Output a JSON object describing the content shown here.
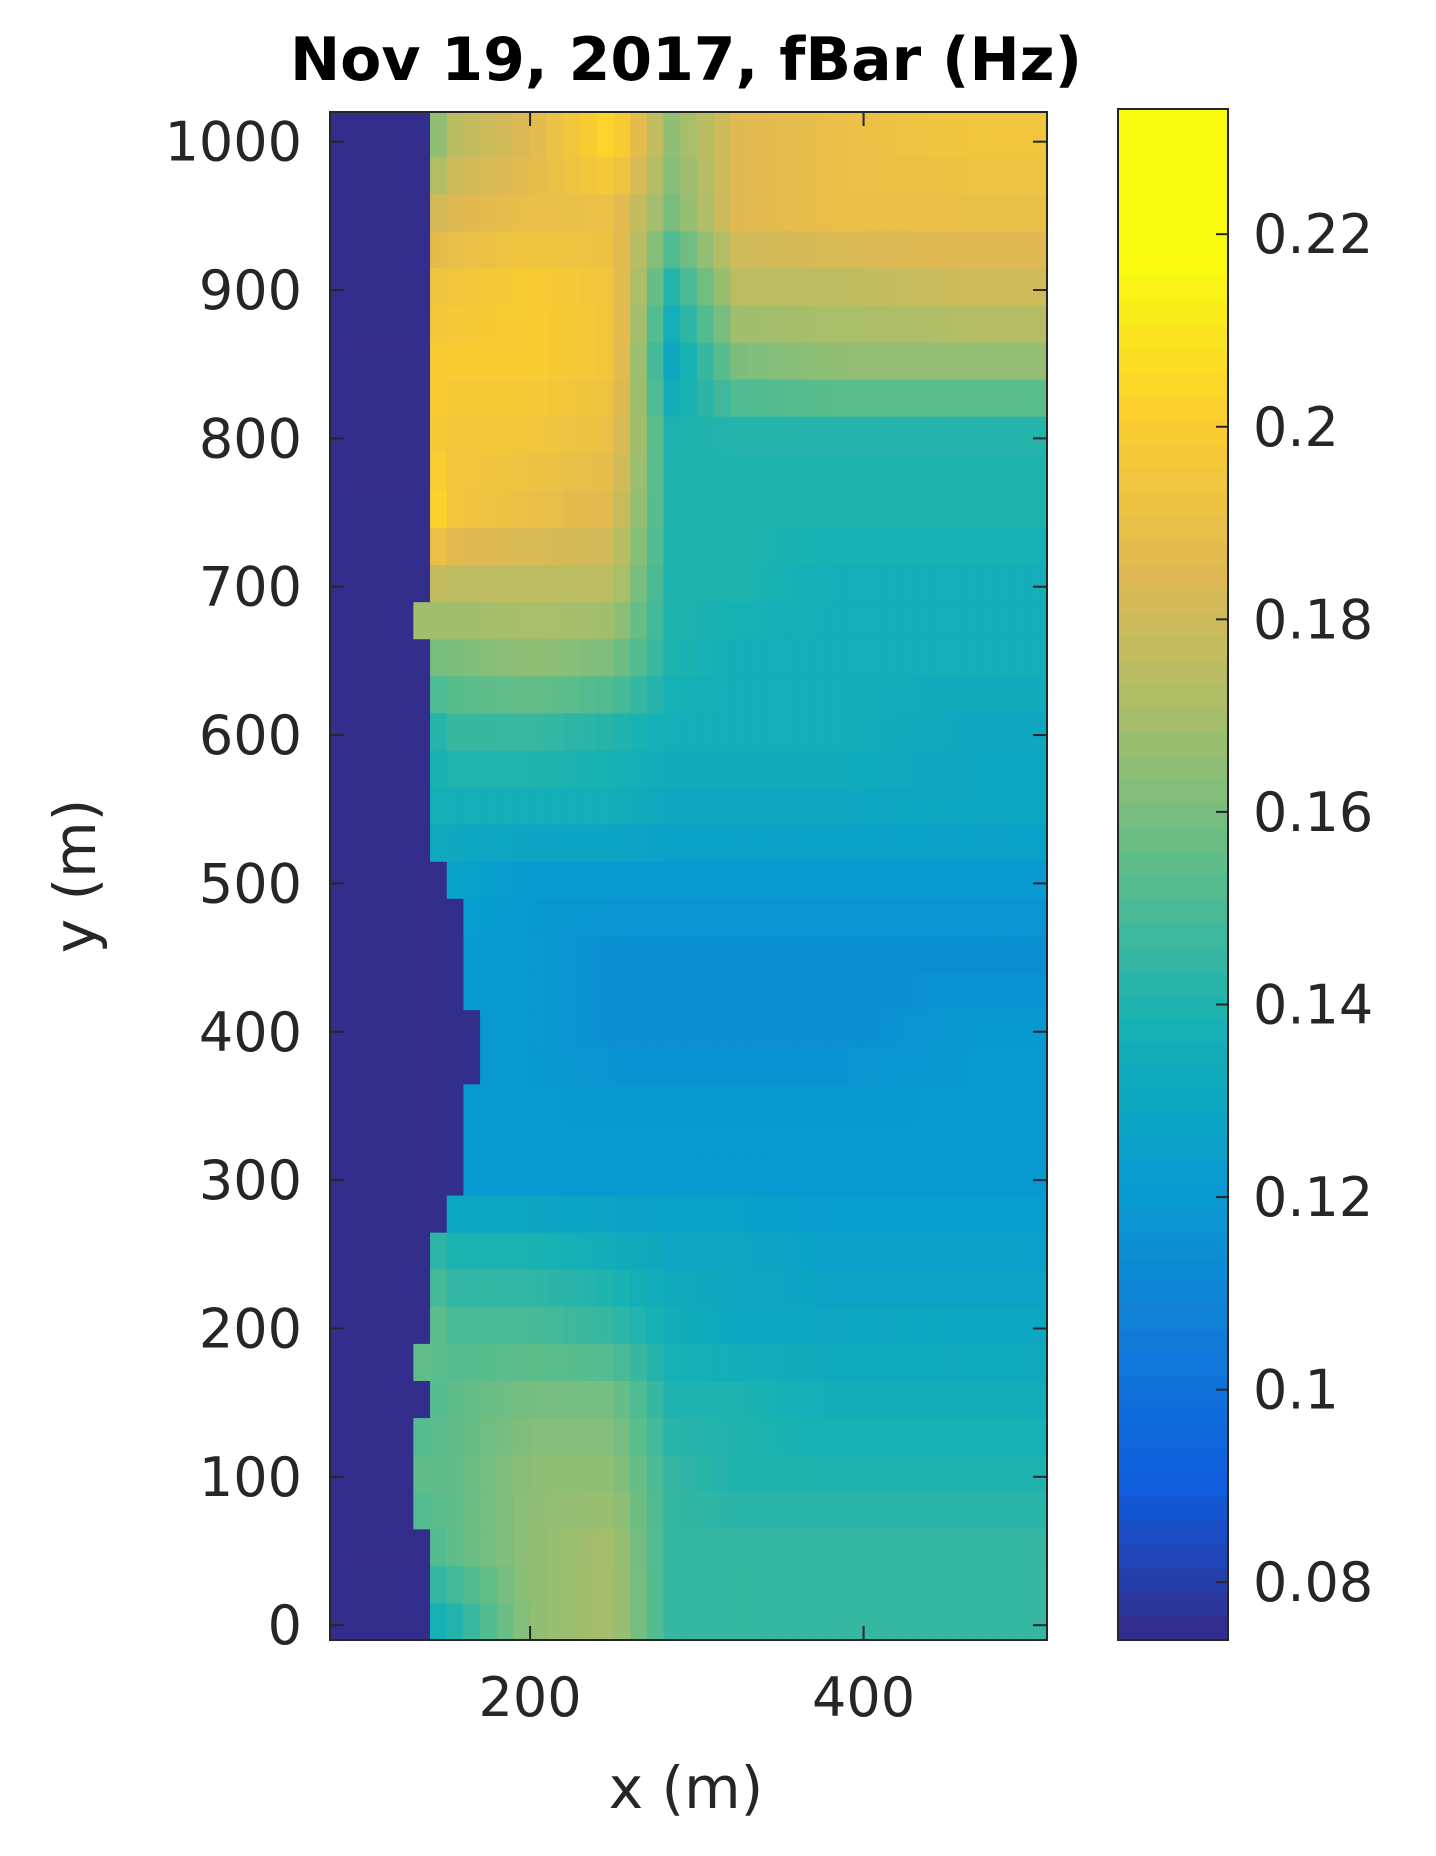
{
  "chart_data": {
    "type": "heatmap",
    "title": "Nov 19, 2017, fBar (Hz)",
    "xlabel": "x (m)",
    "ylabel": "y (m)",
    "xlim": [
      80,
      510
    ],
    "ylim": [
      -10,
      1020
    ],
    "xticks": [
      200,
      400
    ],
    "yticks": [
      0,
      100,
      200,
      300,
      400,
      500,
      600,
      700,
      800,
      900,
      1000
    ],
    "colorbar": {
      "colormap": "parula",
      "clim": [
        0.074,
        0.233
      ],
      "ticks": [
        0.08,
        0.1,
        0.12,
        0.14,
        0.16,
        0.18,
        0.2,
        0.22
      ]
    },
    "grid": false,
    "legend": "none",
    "cell_size_m": {
      "dx": 10,
      "dy": 25
    },
    "land_value_hz": 0.075,
    "land_boundary": [
      {
        "y_from": -10,
        "y_to": 55,
        "x": 140
      },
      {
        "y_from": 55,
        "y_to": 130,
        "x": 130
      },
      {
        "y_from": 130,
        "y_to": 155,
        "x": 140
      },
      {
        "y_from": 155,
        "y_to": 185,
        "x": 130
      },
      {
        "y_from": 185,
        "y_to": 260,
        "x": 140
      },
      {
        "y_from": 260,
        "y_to": 290,
        "x": 150
      },
      {
        "y_from": 290,
        "y_to": 355,
        "x": 160
      },
      {
        "y_from": 355,
        "y_to": 405,
        "x": 170
      },
      {
        "y_from": 405,
        "y_to": 480,
        "x": 160
      },
      {
        "y_from": 480,
        "y_to": 520,
        "x": 150
      },
      {
        "y_from": 520,
        "y_to": 670,
        "x": 140
      },
      {
        "y_from": 670,
        "y_to": 690,
        "x": 130
      },
      {
        "y_from": 690,
        "y_to": 1020,
        "x": 140
      }
    ],
    "column_edges_m": [
      80,
      140,
      170,
      230,
      270,
      300,
      350,
      420,
      510
    ],
    "row_values": [
      {
        "y": 0,
        "values": [
          0.075,
          0.125,
          0.14,
          0.165,
          0.17,
          0.145,
          0.145,
          0.145,
          0.145
        ]
      },
      {
        "y": 50,
        "values": [
          0.075,
          0.14,
          0.155,
          0.165,
          0.17,
          0.145,
          0.145,
          0.145,
          0.145
        ]
      },
      {
        "y": 100,
        "values": [
          0.075,
          0.155,
          0.155,
          0.165,
          0.165,
          0.145,
          0.14,
          0.14,
          0.14
        ]
      },
      {
        "y": 150,
        "values": [
          0.075,
          0.145,
          0.155,
          0.16,
          0.16,
          0.14,
          0.14,
          0.135,
          0.135
        ]
      },
      {
        "y": 200,
        "values": [
          0.075,
          0.17,
          0.15,
          0.15,
          0.145,
          0.135,
          0.13,
          0.13,
          0.13
        ]
      },
      {
        "y": 250,
        "values": [
          0.075,
          0.16,
          0.14,
          0.14,
          0.135,
          0.13,
          0.13,
          0.125,
          0.125
        ]
      },
      {
        "y": 300,
        "values": [
          0.075,
          0.12,
          0.12,
          0.12,
          0.12,
          0.12,
          0.12,
          0.12,
          0.12
        ]
      },
      {
        "y": 350,
        "values": [
          0.075,
          0.115,
          0.12,
          0.12,
          0.12,
          0.12,
          0.12,
          0.12,
          0.12
        ]
      },
      {
        "y": 400,
        "values": [
          0.075,
          0.12,
          0.12,
          0.12,
          0.115,
          0.115,
          0.115,
          0.115,
          0.12
        ]
      },
      {
        "y": 450,
        "values": [
          0.075,
          0.12,
          0.12,
          0.12,
          0.115,
          0.115,
          0.115,
          0.115,
          0.115
        ]
      },
      {
        "y": 500,
        "values": [
          0.075,
          0.13,
          0.125,
          0.12,
          0.12,
          0.12,
          0.12,
          0.12,
          0.12
        ]
      },
      {
        "y": 550,
        "values": [
          0.075,
          0.14,
          0.135,
          0.135,
          0.135,
          0.13,
          0.13,
          0.13,
          0.13
        ]
      },
      {
        "y": 600,
        "values": [
          0.075,
          0.125,
          0.145,
          0.145,
          0.14,
          0.135,
          0.135,
          0.135,
          0.13
        ]
      },
      {
        "y": 650,
        "values": [
          0.075,
          0.155,
          0.16,
          0.165,
          0.16,
          0.14,
          0.135,
          0.135,
          0.135
        ]
      },
      {
        "y": 700,
        "values": [
          0.075,
          0.18,
          0.175,
          0.175,
          0.175,
          0.14,
          0.14,
          0.135,
          0.135
        ]
      },
      {
        "y": 750,
        "values": [
          0.075,
          0.228,
          0.195,
          0.19,
          0.185,
          0.14,
          0.14,
          0.14,
          0.14
        ]
      },
      {
        "y": 800,
        "values": [
          0.075,
          0.21,
          0.195,
          0.195,
          0.19,
          0.14,
          0.14,
          0.14,
          0.14
        ]
      },
      {
        "y": 850,
        "values": [
          0.075,
          0.195,
          0.2,
          0.2,
          0.195,
          0.13,
          0.16,
          0.165,
          0.165
        ]
      },
      {
        "y": 900,
        "values": [
          0.075,
          0.19,
          0.195,
          0.2,
          0.195,
          0.14,
          0.175,
          0.175,
          0.18
        ]
      },
      {
        "y": 950,
        "values": [
          0.075,
          0.175,
          0.185,
          0.19,
          0.19,
          0.16,
          0.185,
          0.19,
          0.19
        ]
      },
      {
        "y": 1000,
        "values": [
          0.075,
          0.13,
          0.175,
          0.185,
          0.205,
          0.165,
          0.185,
          0.19,
          0.195
        ]
      }
    ]
  }
}
